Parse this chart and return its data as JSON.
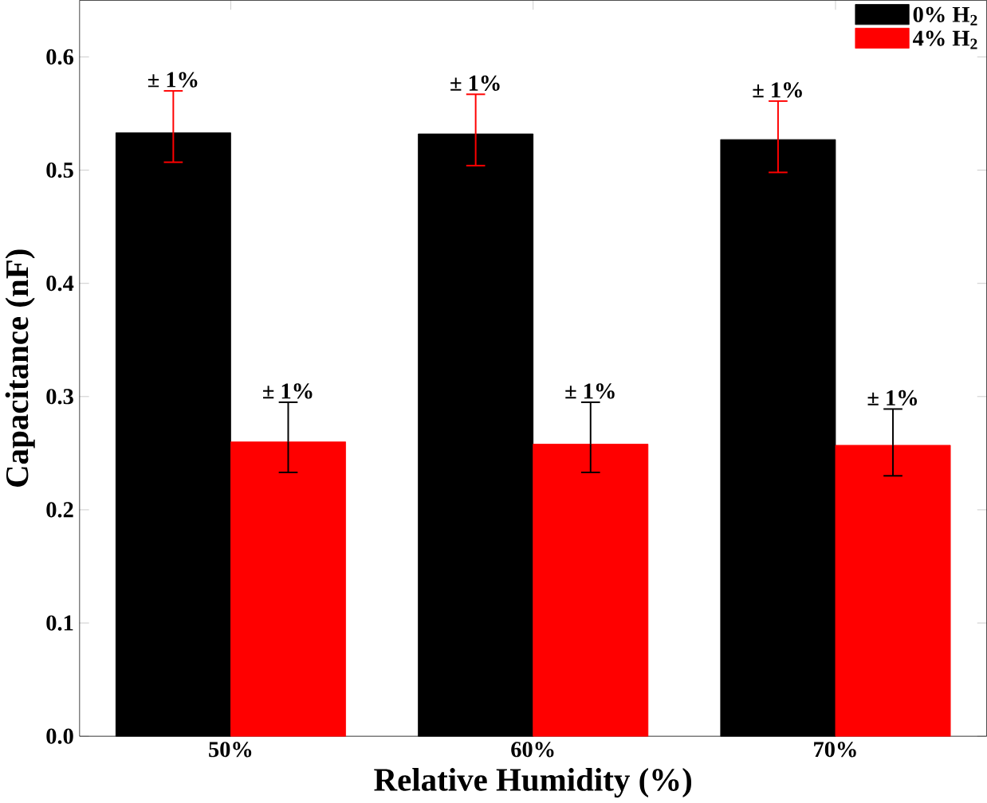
{
  "chart_data": {
    "type": "bar",
    "xlabel": "Relative Humidity (%)",
    "ylabel": "Capacitance (nF)",
    "categories": [
      "50%",
      "60%",
      "70%"
    ],
    "series": [
      {
        "name": "0% H$_{2}$",
        "color": "#000000",
        "values": [
          0.533,
          0.532,
          0.527
        ],
        "errors": [
          [
            0.507,
            0.57
          ],
          [
            0.504,
            0.567
          ],
          [
            0.498,
            0.561
          ]
        ]
      },
      {
        "name": "4% H$_{2}$",
        "color": "#ff0000",
        "values": [
          0.26,
          0.258,
          0.257
        ],
        "errors": [
          [
            0.233,
            0.295
          ],
          [
            0.233,
            0.295
          ],
          [
            0.23,
            0.289
          ]
        ]
      }
    ],
    "ylim": [
      0,
      0.65
    ],
    "yticks": [
      {
        "value": 0,
        "label": "0.0"
      },
      {
        "value": 0.1,
        "label": "0.1"
      },
      {
        "value": 0.2,
        "label": "0.2"
      },
      {
        "value": 0.3,
        "label": "0.3"
      },
      {
        "value": 0.4,
        "label": "0.4"
      },
      {
        "value": 0.5,
        "label": "0.5"
      },
      {
        "value": 0.6,
        "label": "0.6"
      }
    ],
    "annotations": [
      "± 1%",
      "± 1%",
      "± 1%",
      "± 1%",
      "± 1%",
      "± 1%"
    ],
    "legend": "top right",
    "grid": false
  }
}
